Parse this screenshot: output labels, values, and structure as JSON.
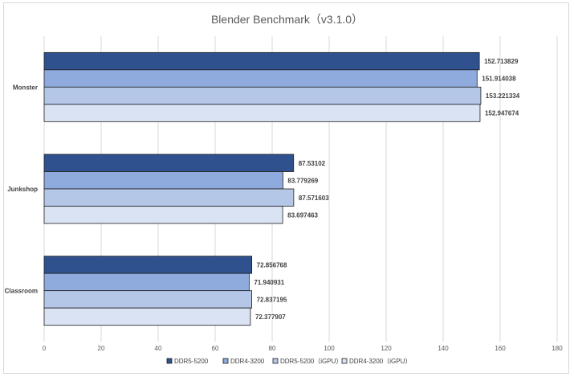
{
  "chart_data": {
    "type": "bar",
    "orientation": "horizontal",
    "title": "Blender Benchmark（v3.1.0）",
    "categories": [
      "Monster",
      "Junkshop",
      "Classroom"
    ],
    "series": [
      {
        "name": "DDR5-5200",
        "color": "#2f528f",
        "values": [
          152.713829,
          87.53102,
          72.856768
        ]
      },
      {
        "name": "DDR4-3200",
        "color": "#8faadc",
        "values": [
          151.914038,
          83.779269,
          71.940931
        ]
      },
      {
        "name": "DDR5-5200（iGPU）",
        "color": "#b4c7e7",
        "values": [
          153.221334,
          87.571603,
          72.837195
        ]
      },
      {
        "name": "DDR4-3200（iGPU）",
        "color": "#dae3f3",
        "values": [
          152.947674,
          83.697463,
          72.377907
        ]
      }
    ],
    "xlim": [
      0,
      180
    ],
    "xticks": [
      0,
      20,
      40,
      60,
      80,
      100,
      120,
      140,
      160,
      180
    ],
    "grid": true,
    "legend": "bottom",
    "data_labels": true
  }
}
